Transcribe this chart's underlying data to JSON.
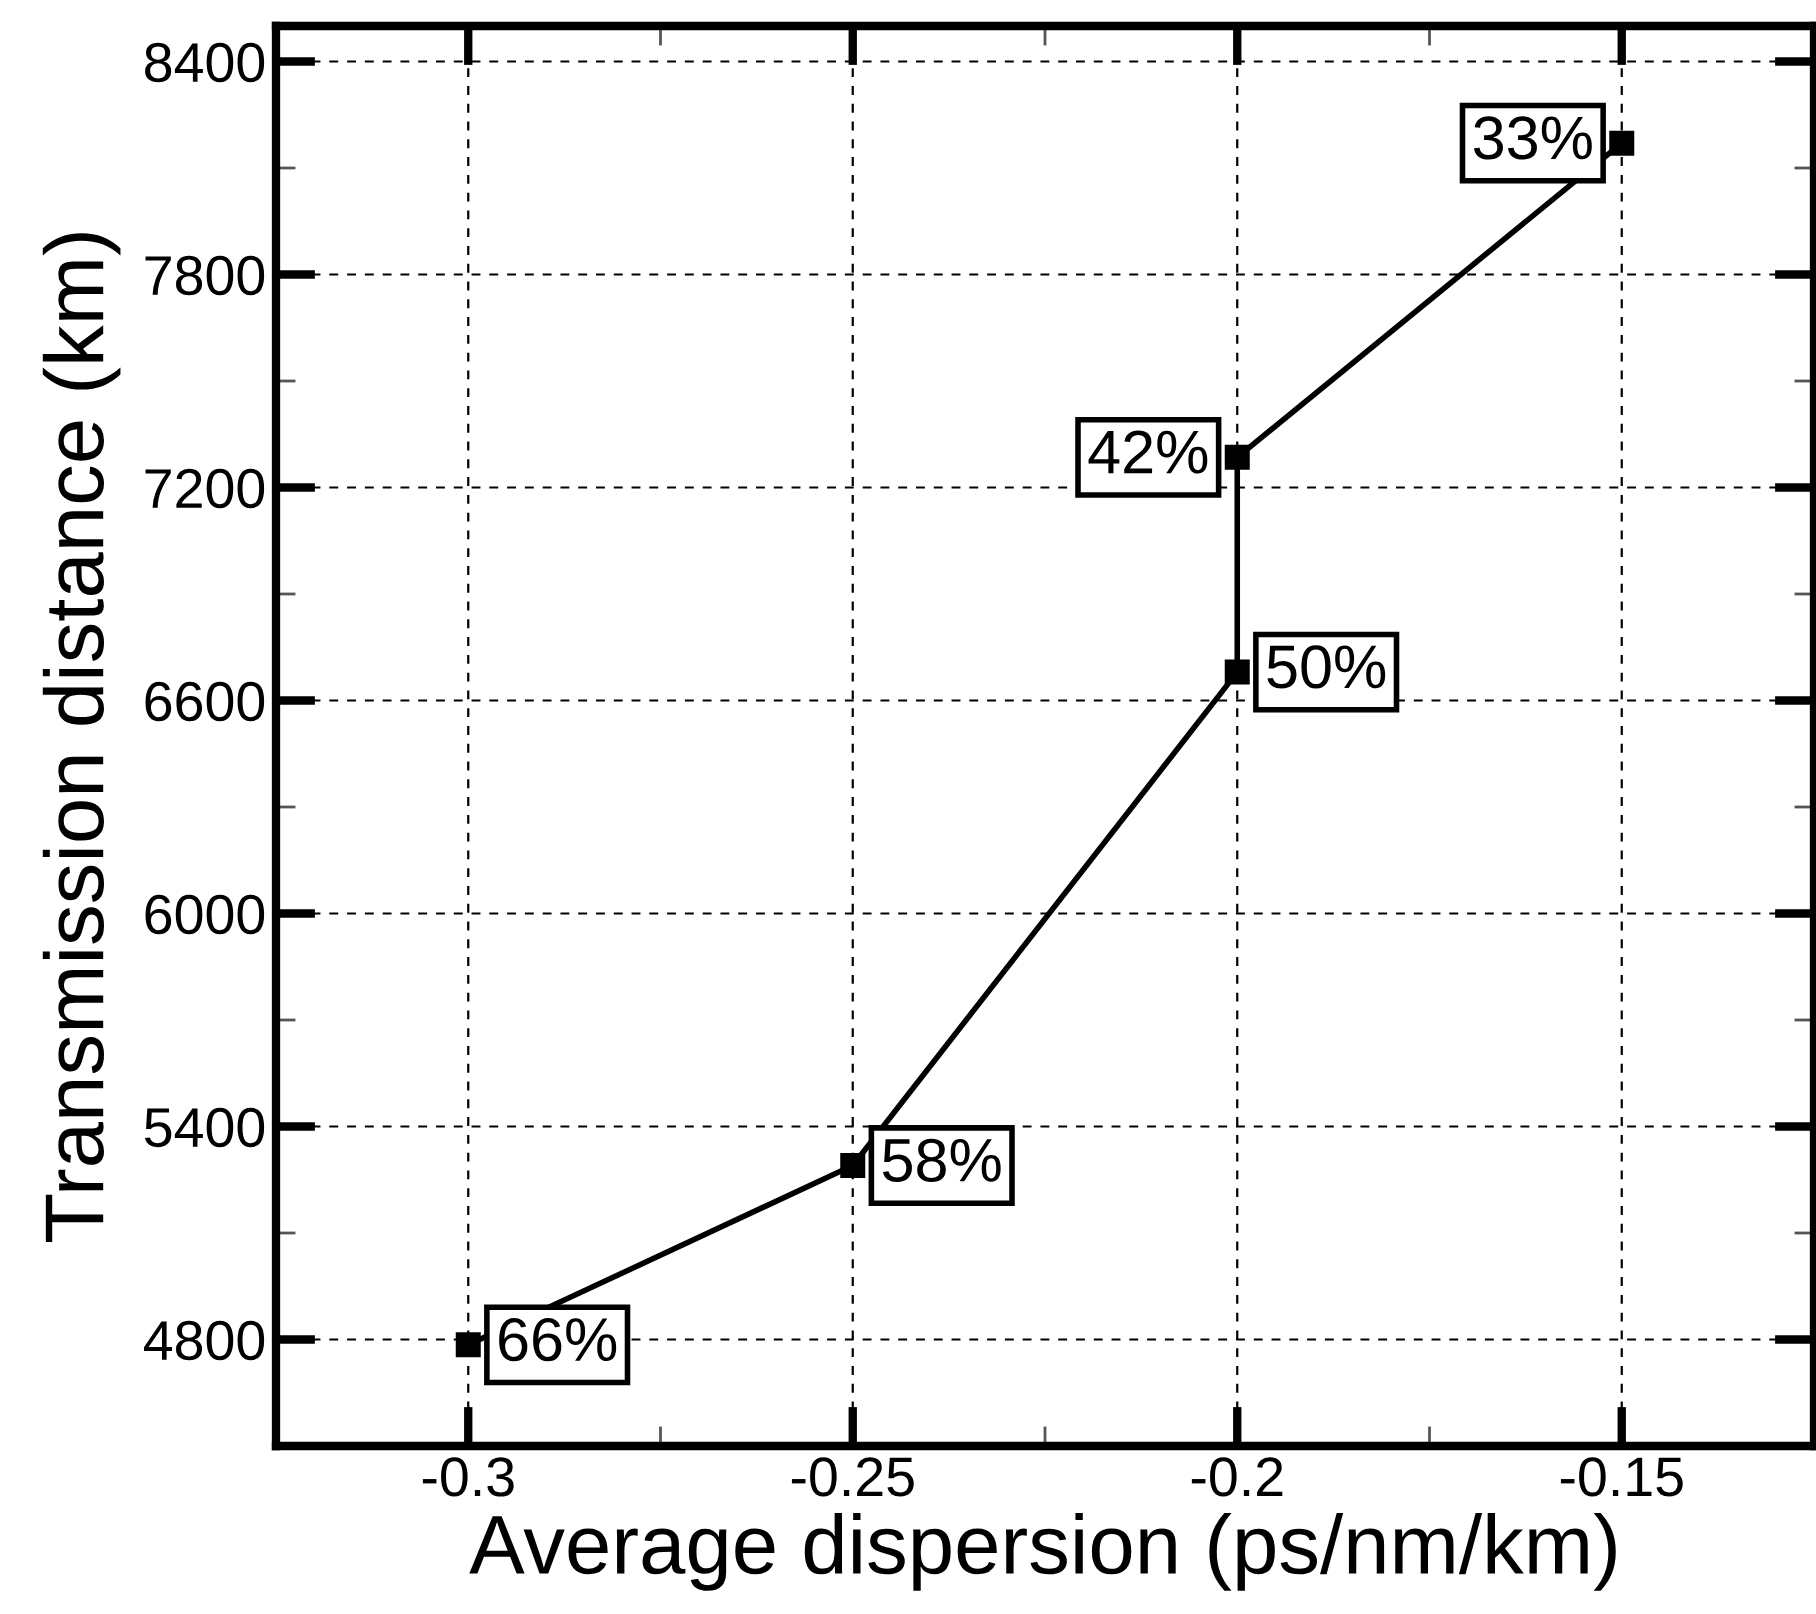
{
  "chart_data": {
    "type": "line",
    "xlabel": "Average dispersion (ps/nm/km)",
    "ylabel": "Transmission distance (km)",
    "x": [
      -0.3,
      -0.25,
      -0.2,
      -0.2,
      -0.15
    ],
    "series": [
      {
        "color": "#000000",
        "values": [
          4785,
          5290,
          6680,
          7285,
          8170
        ]
      }
    ],
    "marker": "square",
    "line_style": "solid",
    "xlim": [
      -0.325,
      -0.125
    ],
    "xticks": [
      -0.3,
      -0.25,
      -0.2,
      -0.15
    ],
    "ylim": [
      4500,
      8500
    ],
    "yticks": [
      4800,
      5400,
      6000,
      6600,
      7200,
      7800,
      8400
    ],
    "grid": true,
    "annotations": [
      {
        "text": "66%",
        "x": -0.3,
        "y": 4785
      },
      {
        "text": "58%",
        "x": -0.25,
        "y": 5290
      },
      {
        "text": "50%",
        "x": -0.2,
        "y": 6680
      },
      {
        "text": "42%",
        "x": -0.2,
        "y": 7285
      },
      {
        "text": "33%",
        "x": -0.15,
        "y": 8170
      }
    ]
  }
}
